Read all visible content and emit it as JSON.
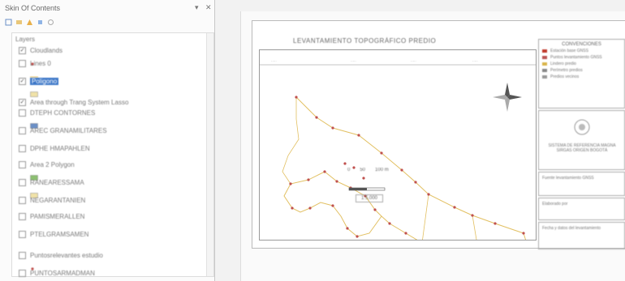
{
  "panel": {
    "title": "Skin Of Contents",
    "controls": "▾ ✕",
    "tree": [
      {
        "label": "Layers",
        "checked": null,
        "selected": false
      },
      {
        "label": "Cloudlands",
        "checked": true,
        "selected": false
      },
      {
        "label": "Lines 0",
        "checked": false,
        "selected": false
      },
      {
        "label": "Poligono",
        "checked": true,
        "selected": true
      },
      {
        "label": "Area through Trang System Lasso",
        "checked": true,
        "selected": false
      },
      {
        "label": "DTEPH CONTORNES",
        "checked": false,
        "selected": false
      },
      {
        "label": "AREC GRANAMILITARES",
        "checked": false,
        "selected": false
      },
      {
        "label": "DPHE HMAPAHLEN",
        "checked": false,
        "selected": false
      },
      {
        "label": "Area 2 Polygon",
        "checked": false,
        "selected": false
      },
      {
        "label": "RANEARESSAMA",
        "checked": false,
        "selected": false
      },
      {
        "label": "NEGARANTANIEN",
        "checked": false,
        "selected": false
      },
      {
        "label": "PAMISMERALLEN",
        "checked": false,
        "selected": false
      },
      {
        "label": "PTELGRAMSAMEN",
        "checked": false,
        "selected": false
      },
      {
        "label": "Puntosrelevantes estudio",
        "checked": false,
        "selected": false
      },
      {
        "label": "PUNTOSARMADMAN",
        "checked": false,
        "selected": false
      }
    ]
  },
  "map": {
    "title": "LEVANTAMIENTO TOPOGRÁFICO PREDIO",
    "scale_bar": {
      "ticks": [
        "0",
        "50",
        "100 m"
      ],
      "ratio": "1:5,000"
    },
    "legend": {
      "title": "CONVENCIONES",
      "items": [
        {
          "label": "Estación base GNSS",
          "color": "#c0392b"
        },
        {
          "label": "Puntos levantamiento GNSS",
          "color": "#b55"
        },
        {
          "label": "Lindero predio",
          "color": "#d9b54a"
        },
        {
          "label": "Perímetro predios",
          "color": "#888"
        },
        {
          "label": "Predios vecinos",
          "color": "#999"
        }
      ]
    },
    "info_blocks": [
      "SISTEMA DE REFERENCIA MAGNA SIRGAS ORIGEN BOGOTÁ",
      "Fuente levantamiento GNSS",
      "Elaborado por",
      "Fecha y datos del levantamiento"
    ]
  }
}
